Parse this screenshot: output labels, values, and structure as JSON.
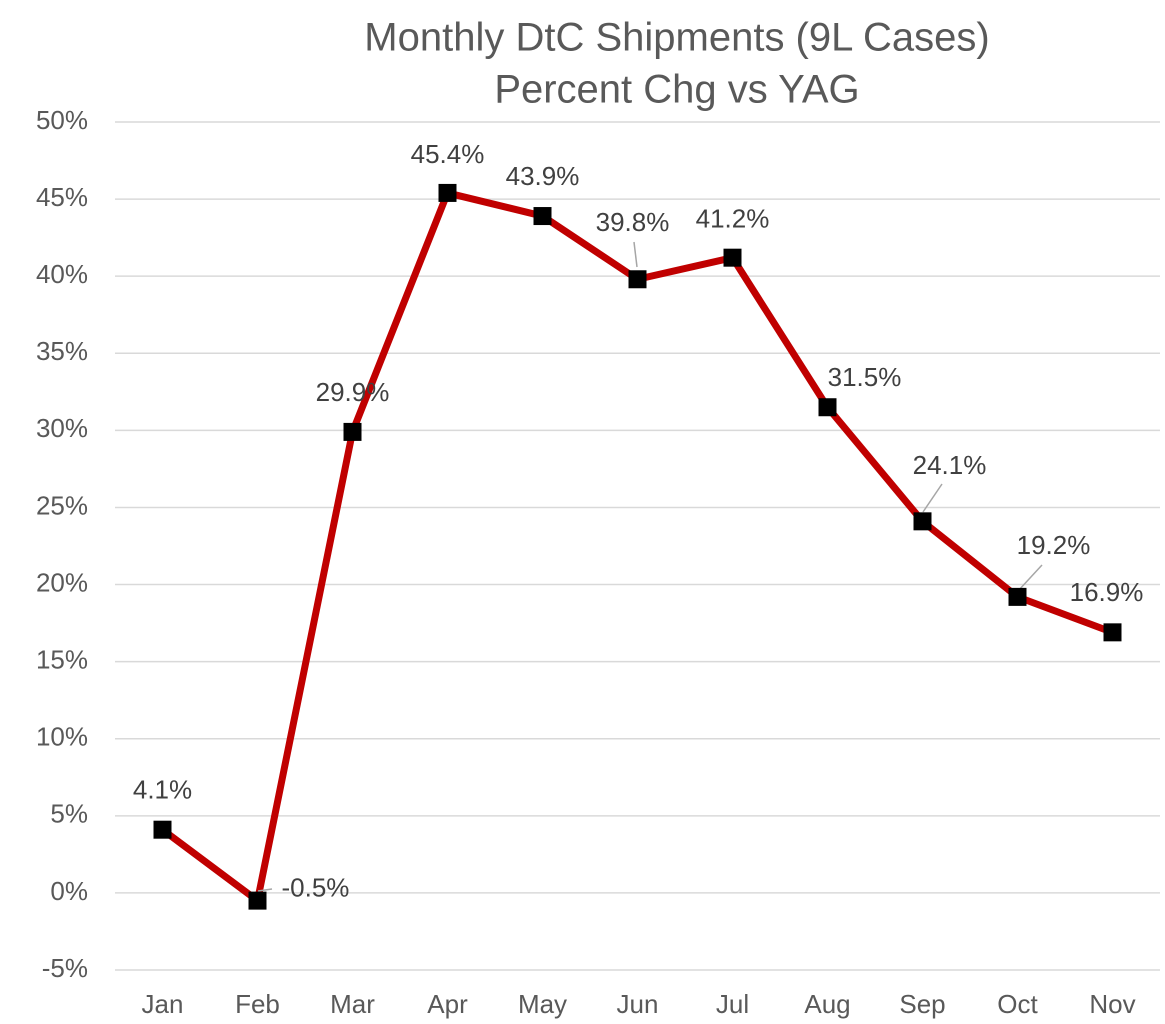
{
  "chart_data": {
    "type": "line",
    "title": "Monthly DtC Shipments (9L Cases)",
    "subtitle": "Percent Chg vs YAG",
    "categories": [
      "Jan",
      "Feb",
      "Mar",
      "Apr",
      "May",
      "Jun",
      "Jul",
      "Aug",
      "Sep",
      "Oct",
      "Nov"
    ],
    "series": [
      {
        "name": "Percent Chg vs YAG",
        "color": "#c00000",
        "marker_color": "#000000",
        "values": [
          4.1,
          -0.5,
          29.9,
          45.4,
          43.9,
          39.8,
          41.2,
          31.5,
          24.1,
          19.2,
          16.9
        ],
        "value_labels": [
          "4.1%",
          "-0.5%",
          "29.9%",
          "45.4%",
          "43.9%",
          "39.8%",
          "41.2%",
          "31.5%",
          "24.1%",
          "19.2%",
          "16.9%"
        ]
      }
    ],
    "ylim": [
      -5,
      50
    ],
    "yticks": [
      {
        "value": -5,
        "label": "-5%"
      },
      {
        "value": 0,
        "label": "0%"
      },
      {
        "value": 5,
        "label": "5%"
      },
      {
        "value": 10,
        "label": "10%"
      },
      {
        "value": 15,
        "label": "15%"
      },
      {
        "value": 20,
        "label": "20%"
      },
      {
        "value": 25,
        "label": "25%"
      },
      {
        "value": 30,
        "label": "30%"
      },
      {
        "value": 35,
        "label": "35%"
      },
      {
        "value": 40,
        "label": "40%"
      },
      {
        "value": 45,
        "label": "45%"
      },
      {
        "value": 50,
        "label": "50%"
      }
    ],
    "grid": true
  }
}
